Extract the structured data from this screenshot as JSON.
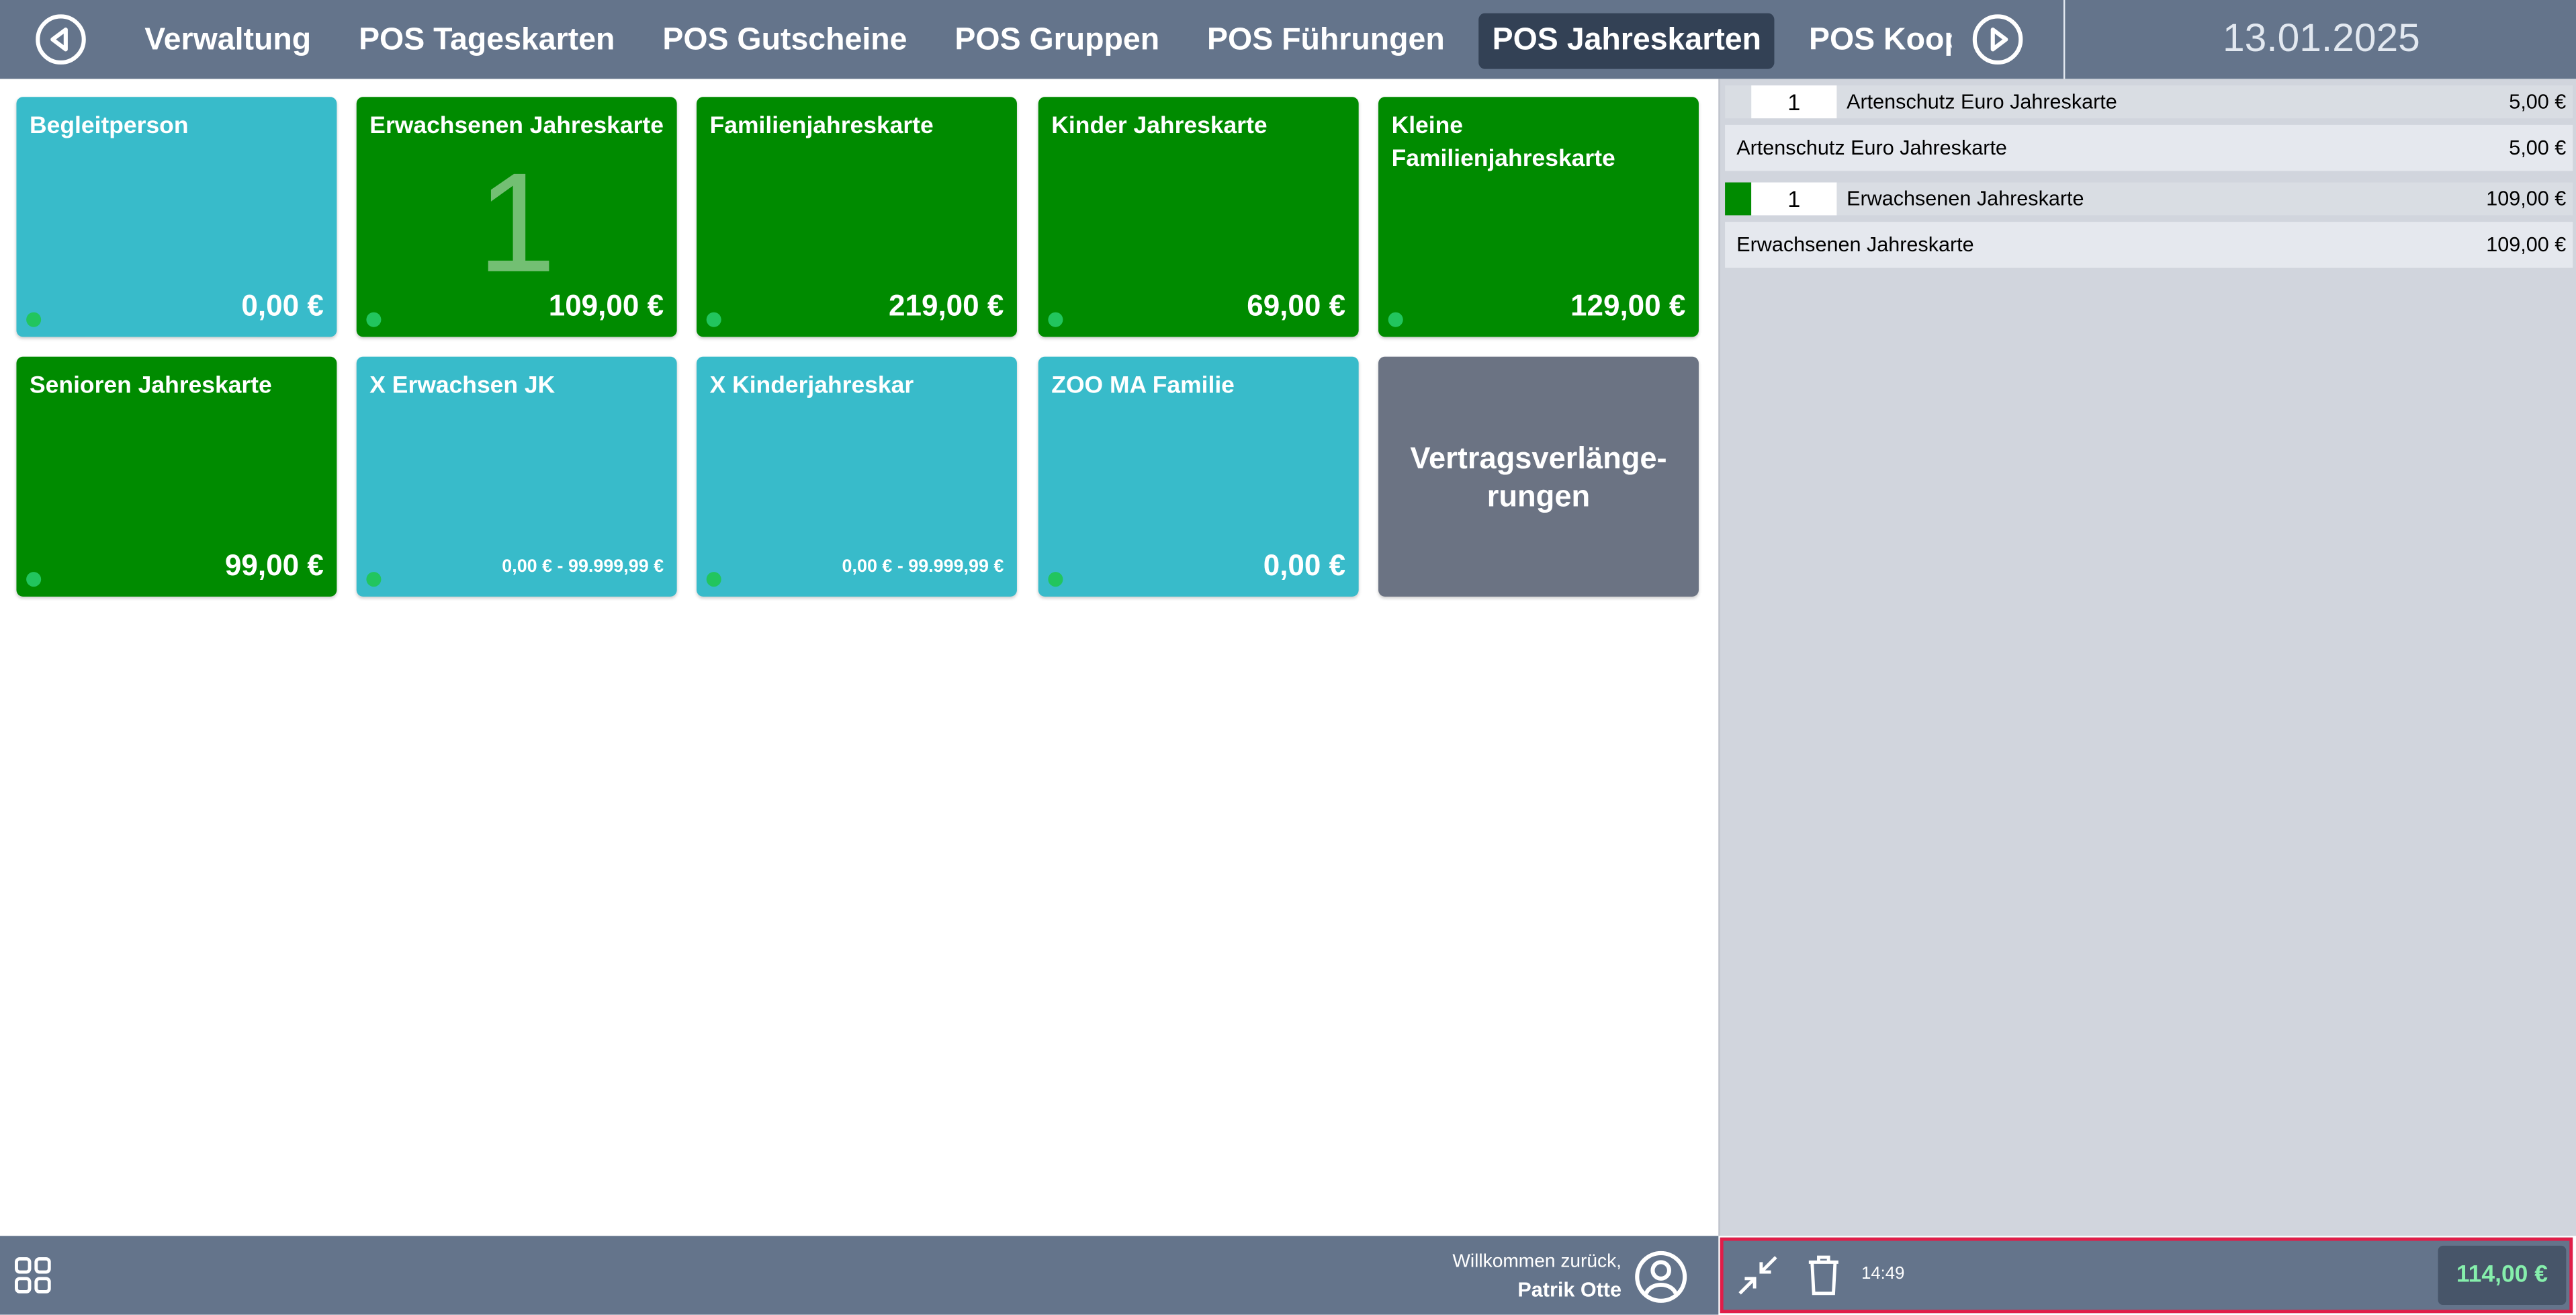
{
  "nav": {
    "tabs": [
      "Verwaltung",
      "POS Tageskarten",
      "POS Gutscheine",
      "POS Gruppen",
      "POS Führungen",
      "POS Jahreskarten",
      "POS Kooperati"
    ],
    "date": "13.01.2025"
  },
  "tiles": [
    {
      "name": "Begleitperson",
      "price": "0,00 €",
      "color": "#38bbca"
    },
    {
      "name": "Erwachsenen Jahreskarte",
      "price": "109,00 €",
      "color": "#008b00",
      "count": "1"
    },
    {
      "name": "Familienjahreskarte",
      "price": "219,00 €",
      "color": "#008b00"
    },
    {
      "name": "Kinder Jahreskarte",
      "price": "69,00 €",
      "color": "#008b00"
    },
    {
      "name": "Kleine Familienjahreskarte",
      "price": "129,00 €",
      "color": "#008b00"
    },
    {
      "name": "Senioren Jahreskarte",
      "price": "99,00 €",
      "color": "#008b00"
    },
    {
      "name": "X Erwachsen JK",
      "price": "0,00 € - 99.999,99 €",
      "color": "#38bbca"
    },
    {
      "name": "X Kinderjahreskar",
      "price": "0,00 € - 99.999,99 €",
      "color": "#38bbca"
    },
    {
      "name": "ZOO MA Familie",
      "price": "0,00 €",
      "color": "#38bbca"
    },
    {
      "name": "Vertragsverlänge-rungen",
      "color": "#6b7383"
    }
  ],
  "cart": [
    {
      "qty": "1",
      "name": "Artenschutz Euro Jahreskarte",
      "price": "5,00 €",
      "detail": "Artenschutz Euro Jahreskarte",
      "detail_price": "5,00 €"
    },
    {
      "qty": "1",
      "name": "Erwachsenen Jahreskarte",
      "price": "109,00 €",
      "detail": "Erwachsenen Jahreskarte",
      "detail_price": "109,00 €",
      "marker_color": "#008b00"
    }
  ],
  "footer": {
    "welcome": "Willkommen zurück,",
    "user": "Patrik Otte",
    "time": "14:49",
    "total": "114,00 €"
  }
}
